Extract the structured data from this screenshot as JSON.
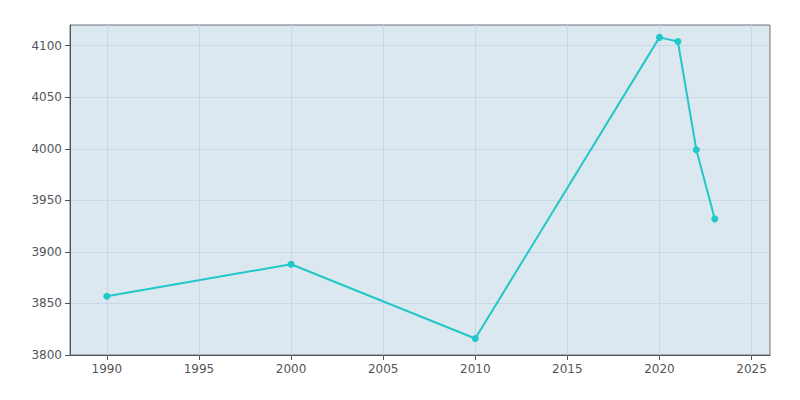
{
  "chart_data": {
    "type": "line",
    "x": [
      1990,
      2000,
      2010,
      2020,
      2021,
      2022,
      2023
    ],
    "values": [
      3857,
      3888,
      3816,
      4108,
      4104,
      3999,
      3932
    ],
    "color": "#22c8c8",
    "marker": "circle",
    "xlim": [
      1988,
      2026
    ],
    "ylim": [
      3800,
      4120
    ],
    "xticks": [
      1990,
      1995,
      2000,
      2005,
      2010,
      2015,
      2020,
      2025
    ],
    "yticks": [
      3800,
      3850,
      3900,
      3950,
      4000,
      4050,
      4100
    ],
    "grid": true
  }
}
